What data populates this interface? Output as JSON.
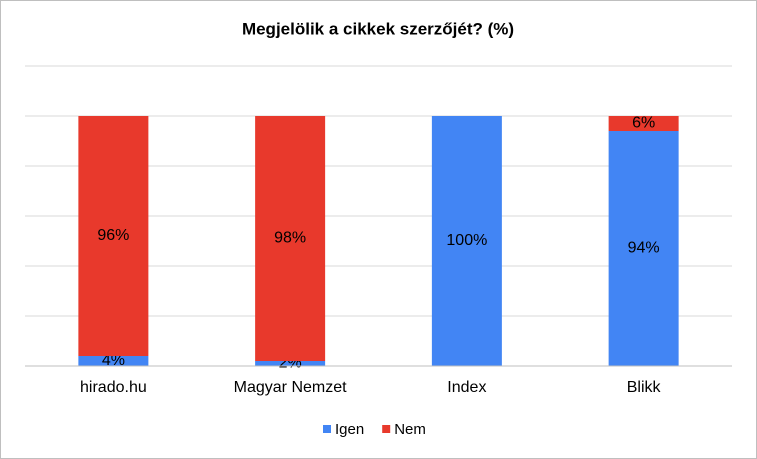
{
  "chart_data": {
    "type": "stacked_bar",
    "title": "Megjelölik  a cikkek szerzőjét? (%)",
    "categories": [
      "hirado.hu",
      "Magyar Nemzet",
      "Index",
      "Blikk"
    ],
    "series": [
      {
        "name": "Igen",
        "color": "#4285f4",
        "values": [
          4,
          2,
          100,
          94
        ],
        "value_labels": [
          "4%",
          "2%",
          "100%",
          "94%"
        ]
      },
      {
        "name": "Nem",
        "color": "#e8392c",
        "values": [
          96,
          98,
          0,
          6
        ],
        "value_labels": [
          "96%",
          "98%",
          null,
          "6%"
        ]
      }
    ],
    "ylim": [
      0,
      120
    ],
    "yticks": [
      0,
      20,
      40,
      60,
      80,
      100,
      120
    ],
    "grid": true,
    "legend": "bottom"
  }
}
